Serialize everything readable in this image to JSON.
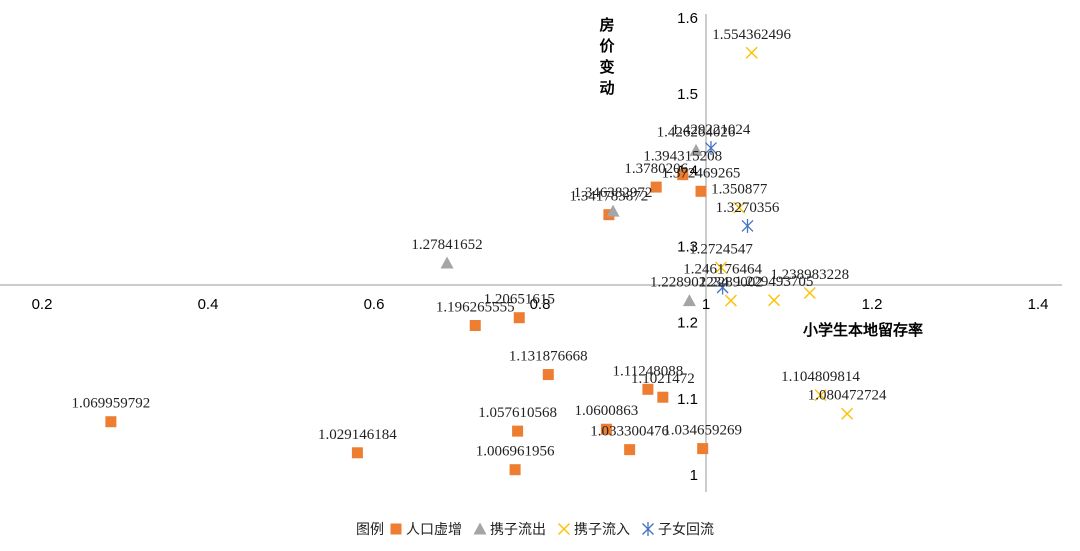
{
  "chart_data": {
    "type": "scatter",
    "xlabel": "小学生本地留存率",
    "ylabel_lines": [
      "房",
      "价",
      "变",
      "动"
    ],
    "xlim": [
      0.2,
      1.4
    ],
    "ylim": [
      0.99,
      1.6
    ],
    "x_ticks": [
      0.2,
      0.4,
      0.6,
      0.8,
      1,
      1.2,
      1.4
    ],
    "x_tick_labels": [
      "0.2",
      "0.4",
      "0.6",
      "0.8",
      "1",
      "1.2",
      "1.4"
    ],
    "y_ticks": [
      1,
      1.1,
      1.2,
      1.3,
      1.4,
      1.5,
      1.6
    ],
    "y_tick_labels": [
      "1",
      "1.1",
      "1.2",
      "1.3",
      "1.4",
      "1.5",
      "1.6"
    ],
    "legend_title": "图例",
    "colors": {
      "人口虚增": "#ED7D31",
      "携子流出": "#A5A5A5",
      "携子流入": "#FFC000",
      "子女回流": "#4472C4",
      "axis": "#999999",
      "label": "#222222"
    },
    "series": [
      {
        "name": "人口虚增",
        "marker": "square",
        "points": [
          {
            "x": 0.283,
            "y": 1.069959792,
            "label": "1.069959792"
          },
          {
            "x": 0.58,
            "y": 1.029146184,
            "label": "1.029146184"
          },
          {
            "x": 0.722,
            "y": 1.196265555,
            "label": "1.196265555"
          },
          {
            "x": 0.775,
            "y": 1.20651615,
            "label": "1.20651615"
          },
          {
            "x": 0.81,
            "y": 1.131876668,
            "label": "1.131876668"
          },
          {
            "x": 0.773,
            "y": 1.057610568,
            "label": "1.057610568"
          },
          {
            "x": 0.77,
            "y": 1.006961956,
            "label": "1.006961956"
          },
          {
            "x": 0.88,
            "y": 1.0600863,
            "label": "1.0600863"
          },
          {
            "x": 0.908,
            "y": 1.033300476,
            "label": "1.033300476"
          },
          {
            "x": 0.93,
            "y": 1.11248088,
            "label": "1.11248088"
          },
          {
            "x": 0.948,
            "y": 1.1021472,
            "label": "1.1021472"
          },
          {
            "x": 0.996,
            "y": 1.034659269,
            "label": "1.034659269"
          },
          {
            "x": 0.883,
            "y": 1.341783872,
            "label": "1.341783872"
          },
          {
            "x": 0.94,
            "y": 1.3780206,
            "label": "1.3780206"
          },
          {
            "x": 0.972,
            "y": 1.394315208,
            "label": "1.394315208"
          },
          {
            "x": 0.994,
            "y": 1.372469265,
            "label": "1.372469265"
          }
        ]
      },
      {
        "name": "携子流出",
        "marker": "triangle",
        "points": [
          {
            "x": 0.688,
            "y": 1.27841652,
            "label": "1.27841652"
          },
          {
            "x": 0.888,
            "y": 1.346382972,
            "label": "1.346382972"
          },
          {
            "x": 0.988,
            "y": 1.426264026,
            "label": "1.426264026"
          },
          {
            "x": 0.98,
            "y": 1.228902234,
            "label": "1.228902234"
          }
        ]
      },
      {
        "name": "携子流入",
        "marker": "x",
        "points": [
          {
            "x": 1.055,
            "y": 1.554362496,
            "label": "1.554362496"
          },
          {
            "x": 1.04,
            "y": 1.350877,
            "label": "1.350877"
          },
          {
            "x": 1.018,
            "y": 1.2724547,
            "label": "1.2724547"
          },
          {
            "x": 1.03,
            "y": 1.2289002,
            "label": "1.2289002"
          },
          {
            "x": 1.082,
            "y": 1.229493705,
            "label": "1.229493705"
          },
          {
            "x": 1.125,
            "y": 1.238983228,
            "label": "1.238983228"
          },
          {
            "x": 1.138,
            "y": 1.104809814,
            "label": "1.104809814"
          },
          {
            "x": 1.17,
            "y": 1.080472724,
            "label": "1.080472724"
          }
        ]
      },
      {
        "name": "子女回流",
        "marker": "asterisk",
        "points": [
          {
            "x": 1.05,
            "y": 1.3270356,
            "label": "1.3270356"
          },
          {
            "x": 1.02,
            "y": 1.246176464,
            "label": "1.246176464"
          },
          {
            "x": 1.006,
            "y": 1.429221024,
            "label": "1.429221024"
          }
        ]
      }
    ]
  }
}
